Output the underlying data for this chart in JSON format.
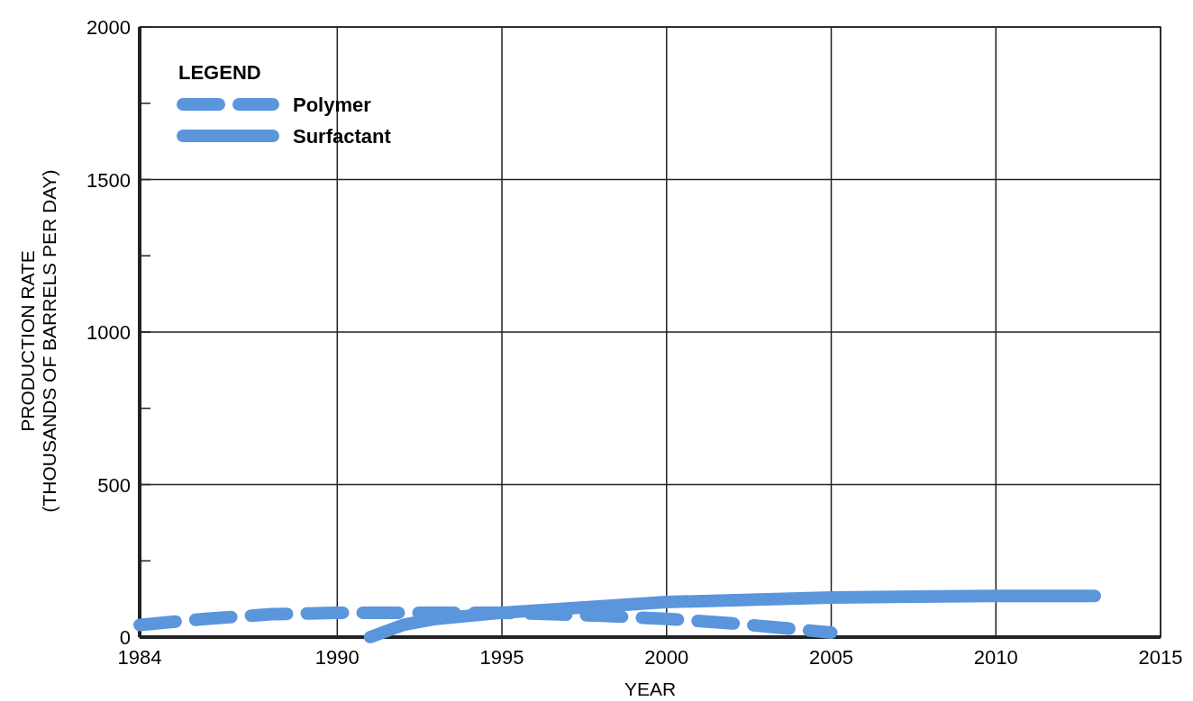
{
  "chart_data": {
    "type": "line",
    "xlabel": "YEAR",
    "ylabel": "PRODUCTION RATE\n(THOUSANDS OF BARRELS PER DAY)",
    "legend_title": "LEGEND",
    "legend": "top left",
    "grid": true,
    "xlim": [
      1984,
      2015
    ],
    "xticks": [
      1984,
      1990,
      1995,
      2000,
      2005,
      2010,
      2015
    ],
    "ylim": [
      0,
      2000
    ],
    "yticks": [
      0,
      {
        "value": 250,
        "label": null
      },
      500,
      {
        "value": 750,
        "label": null
      },
      1000,
      {
        "value": 1250,
        "label": null
      },
      1500,
      {
        "value": 1750,
        "label": null
      },
      2000
    ],
    "series": [
      {
        "name": "Polymer",
        "color": "#5b95dc",
        "line_style": "dashed",
        "x": [
          1984,
          1986,
          1988,
          1990,
          1992,
          1995,
          1998,
          2000,
          2002,
          2005
        ],
        "values": [
          40,
          60,
          75,
          80,
          80,
          80,
          70,
          60,
          45,
          15
        ]
      },
      {
        "name": "Surfactant",
        "color": "#5b95dc",
        "line_style": "solid",
        "x": [
          1991,
          1992,
          1993,
          1995,
          2000,
          2005,
          2010,
          2013
        ],
        "values": [
          0,
          40,
          60,
          80,
          115,
          130,
          135,
          135
        ]
      }
    ]
  }
}
